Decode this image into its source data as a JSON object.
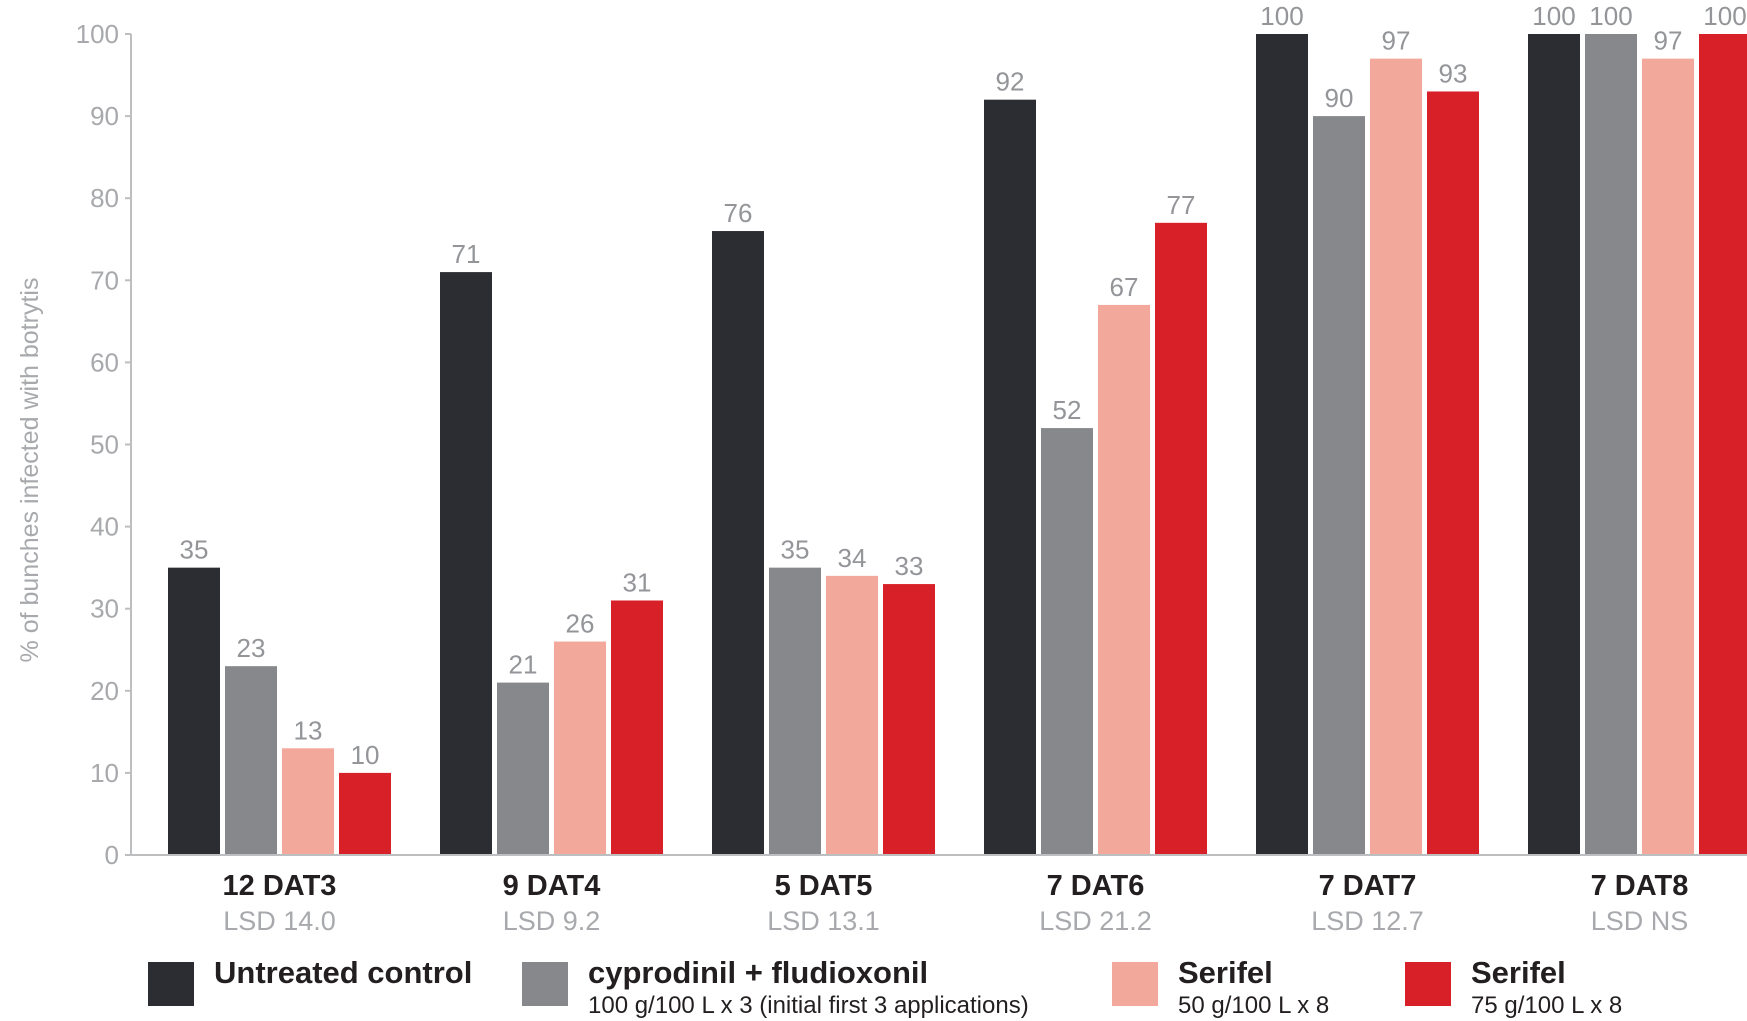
{
  "chart_data": {
    "type": "bar",
    "ylabel": "% of bunches infected with botrytis",
    "xlabel": "",
    "ylim": [
      0,
      100
    ],
    "yticks": [
      0,
      10,
      20,
      30,
      40,
      50,
      60,
      70,
      80,
      90,
      100
    ],
    "grid": false,
    "legend_position": "bottom",
    "categories": [
      "12 DAT3",
      "9 DAT4",
      "5 DAT5",
      "7 DAT6",
      "7 DAT7",
      "7 DAT8"
    ],
    "category_sublabels": [
      "LSD 14.0",
      "LSD 9.2",
      "LSD 13.1",
      "LSD 21.2",
      "LSD 12.7",
      "LSD NS"
    ],
    "series": [
      {
        "name": "Untreated control",
        "note": "",
        "color": "#2b2d33",
        "values": [
          35,
          71,
          76,
          92,
          100,
          100
        ]
      },
      {
        "name": "cyprodinil + fludioxonil",
        "note": "100 g/100 L x 3 (initial first 3 applications)",
        "color": "#87888c",
        "values": [
          23,
          21,
          35,
          52,
          90,
          100
        ]
      },
      {
        "name": "Serifel",
        "note": "50 g/100 L x 8",
        "color": "#f2a99c",
        "values": [
          13,
          26,
          34,
          67,
          97,
          97
        ]
      },
      {
        "name": "Serifel",
        "note": "75 g/100 L x 8",
        "color": "#d72028",
        "values": [
          10,
          31,
          33,
          77,
          93,
          100
        ]
      }
    ]
  }
}
